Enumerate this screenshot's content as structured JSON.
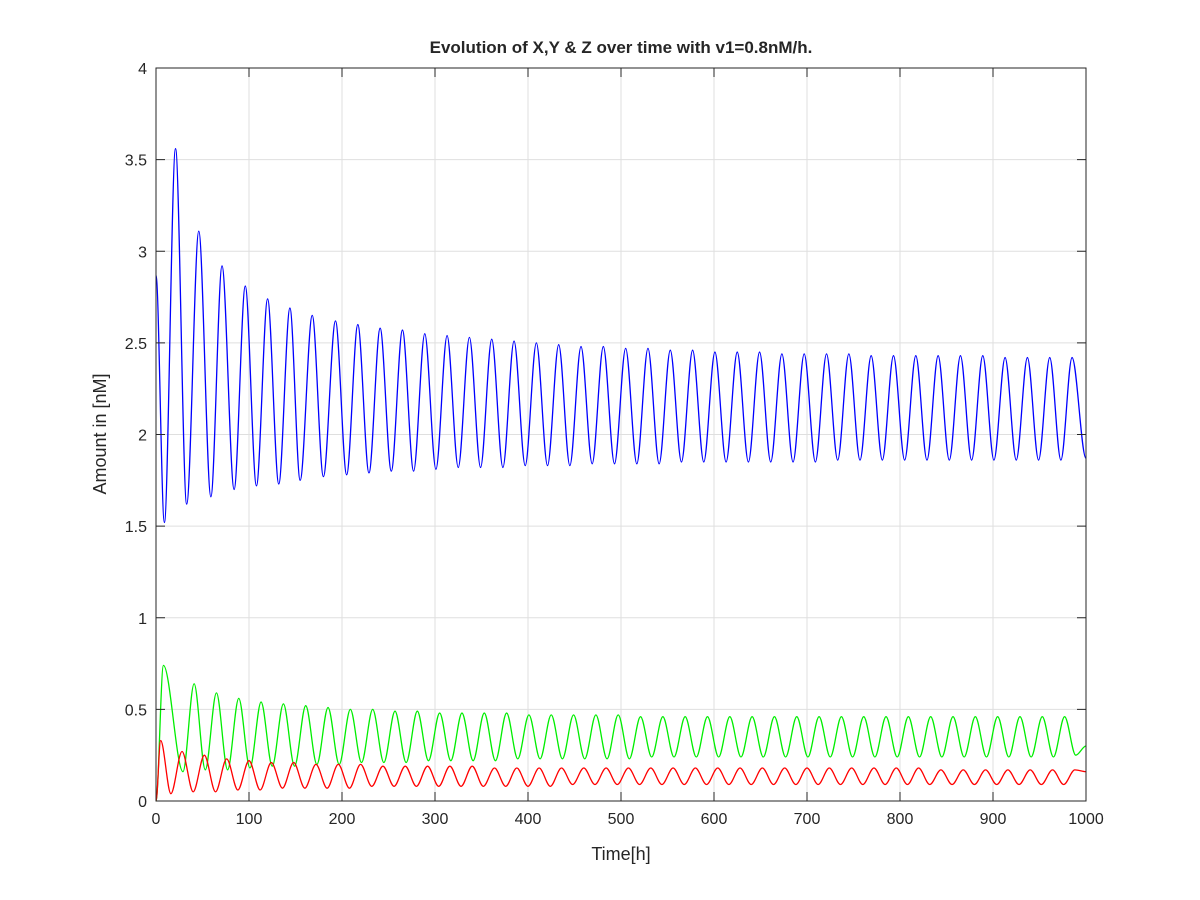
{
  "chart_data": {
    "type": "line",
    "title": "Evolution of X,Y & Z over time with v1=0.8nM/h.",
    "xlabel": "Time[h]",
    "ylabel": "Amount in [nM]",
    "xlim": [
      0,
      1000
    ],
    "ylim": [
      0,
      4
    ],
    "x_ticks": [
      "0",
      "100",
      "200",
      "300",
      "400",
      "500",
      "600",
      "700",
      "800",
      "900",
      "1000"
    ],
    "y_ticks": [
      "0",
      "0.5",
      "1",
      "1.5",
      "2",
      "2.5",
      "3",
      "3.5",
      "4"
    ],
    "grid": true,
    "period_h": 24,
    "series": [
      {
        "color": "#0000ff",
        "x": [
          0,
          9,
          21,
          33,
          46,
          59,
          71,
          84,
          96,
          108,
          120,
          132,
          144,
          155,
          168,
          180,
          193,
          205,
          217,
          229,
          241,
          253,
          265,
          277,
          289,
          301,
          313,
          325,
          337,
          349,
          361,
          373,
          385,
          397,
          409,
          421,
          433,
          445,
          457,
          469,
          481,
          493,
          505,
          517,
          529,
          541,
          553,
          565,
          577,
          589,
          601,
          613,
          625,
          637,
          649,
          661,
          673,
          685,
          697,
          709,
          721,
          733,
          745,
          757,
          769,
          781,
          793,
          805,
          817,
          829,
          841,
          853,
          865,
          877,
          889,
          901,
          913,
          925,
          937,
          949,
          961,
          973,
          985,
          1000
        ],
        "values": [
          2.87,
          1.52,
          3.56,
          1.62,
          3.11,
          1.66,
          2.92,
          1.7,
          2.81,
          1.72,
          2.74,
          1.73,
          2.69,
          1.75,
          2.65,
          1.77,
          2.62,
          1.78,
          2.6,
          1.79,
          2.58,
          1.8,
          2.57,
          1.8,
          2.55,
          1.81,
          2.54,
          1.82,
          2.53,
          1.82,
          2.52,
          1.82,
          2.51,
          1.83,
          2.5,
          1.83,
          2.49,
          1.83,
          2.48,
          1.84,
          2.48,
          1.84,
          2.47,
          1.84,
          2.47,
          1.84,
          2.46,
          1.85,
          2.46,
          1.85,
          2.45,
          1.85,
          2.45,
          1.85,
          2.45,
          1.85,
          2.44,
          1.85,
          2.44,
          1.85,
          2.44,
          1.86,
          2.44,
          1.86,
          2.43,
          1.86,
          2.43,
          1.86,
          2.43,
          1.86,
          2.43,
          1.86,
          2.43,
          1.86,
          2.43,
          1.86,
          2.42,
          1.86,
          2.42,
          1.86,
          2.42,
          1.86,
          2.42,
          1.87
        ]
      },
      {
        "color": "#00ee00",
        "x": [
          0,
          8,
          29,
          41,
          53,
          65,
          77,
          89,
          101,
          113,
          125,
          137,
          149,
          161,
          173,
          185,
          197,
          209,
          221,
          233,
          245,
          257,
          269,
          281,
          293,
          305,
          317,
          329,
          341,
          353,
          365,
          377,
          389,
          401,
          413,
          425,
          437,
          449,
          461,
          473,
          485,
          497,
          509,
          521,
          533,
          545,
          557,
          569,
          581,
          593,
          605,
          617,
          629,
          641,
          653,
          665,
          677,
          689,
          701,
          713,
          725,
          737,
          749,
          761,
          773,
          785,
          797,
          809,
          821,
          833,
          845,
          857,
          869,
          881,
          893,
          905,
          917,
          929,
          941,
          953,
          965,
          977,
          989,
          1000
        ],
        "values": [
          0,
          0.74,
          0.16,
          0.64,
          0.17,
          0.59,
          0.17,
          0.56,
          0.18,
          0.54,
          0.19,
          0.53,
          0.19,
          0.52,
          0.2,
          0.51,
          0.2,
          0.5,
          0.21,
          0.5,
          0.21,
          0.49,
          0.21,
          0.49,
          0.22,
          0.48,
          0.22,
          0.48,
          0.22,
          0.48,
          0.22,
          0.48,
          0.23,
          0.47,
          0.23,
          0.47,
          0.23,
          0.47,
          0.23,
          0.47,
          0.23,
          0.47,
          0.23,
          0.46,
          0.24,
          0.46,
          0.24,
          0.46,
          0.24,
          0.46,
          0.24,
          0.46,
          0.24,
          0.46,
          0.24,
          0.46,
          0.24,
          0.46,
          0.24,
          0.46,
          0.24,
          0.46,
          0.24,
          0.46,
          0.24,
          0.46,
          0.24,
          0.46,
          0.24,
          0.46,
          0.24,
          0.46,
          0.24,
          0.46,
          0.24,
          0.46,
          0.24,
          0.46,
          0.24,
          0.46,
          0.24,
          0.46,
          0.25,
          0.3
        ]
      },
      {
        "color": "#ff0000",
        "x": [
          0,
          5,
          16,
          28,
          40,
          52,
          64,
          76,
          88,
          100,
          112,
          124,
          136,
          148,
          160,
          172,
          184,
          196,
          208,
          220,
          232,
          244,
          256,
          268,
          280,
          292,
          304,
          316,
          328,
          340,
          352,
          364,
          376,
          388,
          400,
          412,
          424,
          436,
          448,
          460,
          472,
          484,
          496,
          508,
          520,
          532,
          544,
          556,
          568,
          580,
          592,
          604,
          616,
          628,
          640,
          652,
          664,
          676,
          688,
          700,
          712,
          724,
          736,
          748,
          760,
          772,
          784,
          796,
          808,
          820,
          832,
          844,
          856,
          868,
          880,
          892,
          904,
          916,
          928,
          940,
          952,
          964,
          976,
          988,
          1000
        ],
        "values": [
          0,
          0.33,
          0.04,
          0.27,
          0.05,
          0.25,
          0.05,
          0.23,
          0.06,
          0.22,
          0.06,
          0.21,
          0.07,
          0.21,
          0.07,
          0.2,
          0.07,
          0.2,
          0.07,
          0.2,
          0.08,
          0.19,
          0.08,
          0.19,
          0.08,
          0.19,
          0.08,
          0.19,
          0.08,
          0.19,
          0.08,
          0.18,
          0.08,
          0.18,
          0.08,
          0.18,
          0.08,
          0.18,
          0.09,
          0.18,
          0.09,
          0.18,
          0.09,
          0.18,
          0.09,
          0.18,
          0.09,
          0.18,
          0.09,
          0.18,
          0.09,
          0.18,
          0.09,
          0.18,
          0.09,
          0.18,
          0.09,
          0.18,
          0.09,
          0.18,
          0.09,
          0.18,
          0.09,
          0.18,
          0.09,
          0.18,
          0.09,
          0.18,
          0.09,
          0.18,
          0.09,
          0.17,
          0.09,
          0.17,
          0.09,
          0.17,
          0.09,
          0.17,
          0.09,
          0.17,
          0.09,
          0.17,
          0.09,
          0.17,
          0.16
        ]
      }
    ]
  }
}
